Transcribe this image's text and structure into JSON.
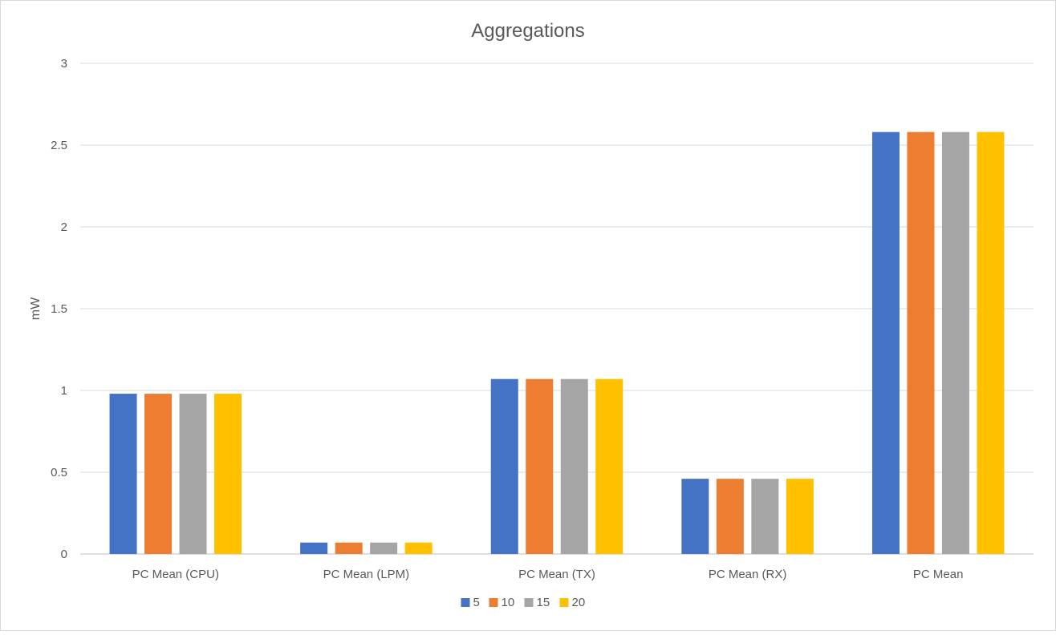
{
  "chart_data": {
    "type": "bar",
    "title": "Aggregations",
    "xlabel": "",
    "ylabel": "mW",
    "ylim": [
      0,
      3
    ],
    "yticks": [
      0,
      0.5,
      1,
      1.5,
      2,
      2.5,
      3
    ],
    "ytick_labels": [
      "0",
      "0.5",
      "1",
      "1.5",
      "2",
      "2.5",
      "3"
    ],
    "grid": true,
    "legend": "bottom",
    "categories": [
      "PC Mean (CPU)",
      "PC Mean (LPM)",
      "PC Mean (TX)",
      "PC Mean (RX)",
      "PC Mean"
    ],
    "series": [
      {
        "name": "5",
        "color": "#4472C4",
        "values": [
          0.98,
          0.07,
          1.07,
          0.46,
          2.58
        ]
      },
      {
        "name": "10",
        "color": "#ED7D31",
        "values": [
          0.98,
          0.07,
          1.07,
          0.46,
          2.58
        ]
      },
      {
        "name": "15",
        "color": "#A5A5A5",
        "values": [
          0.98,
          0.07,
          1.07,
          0.46,
          2.58
        ]
      },
      {
        "name": "20",
        "color": "#FFC000",
        "values": [
          0.98,
          0.07,
          1.07,
          0.46,
          2.58
        ]
      }
    ]
  }
}
